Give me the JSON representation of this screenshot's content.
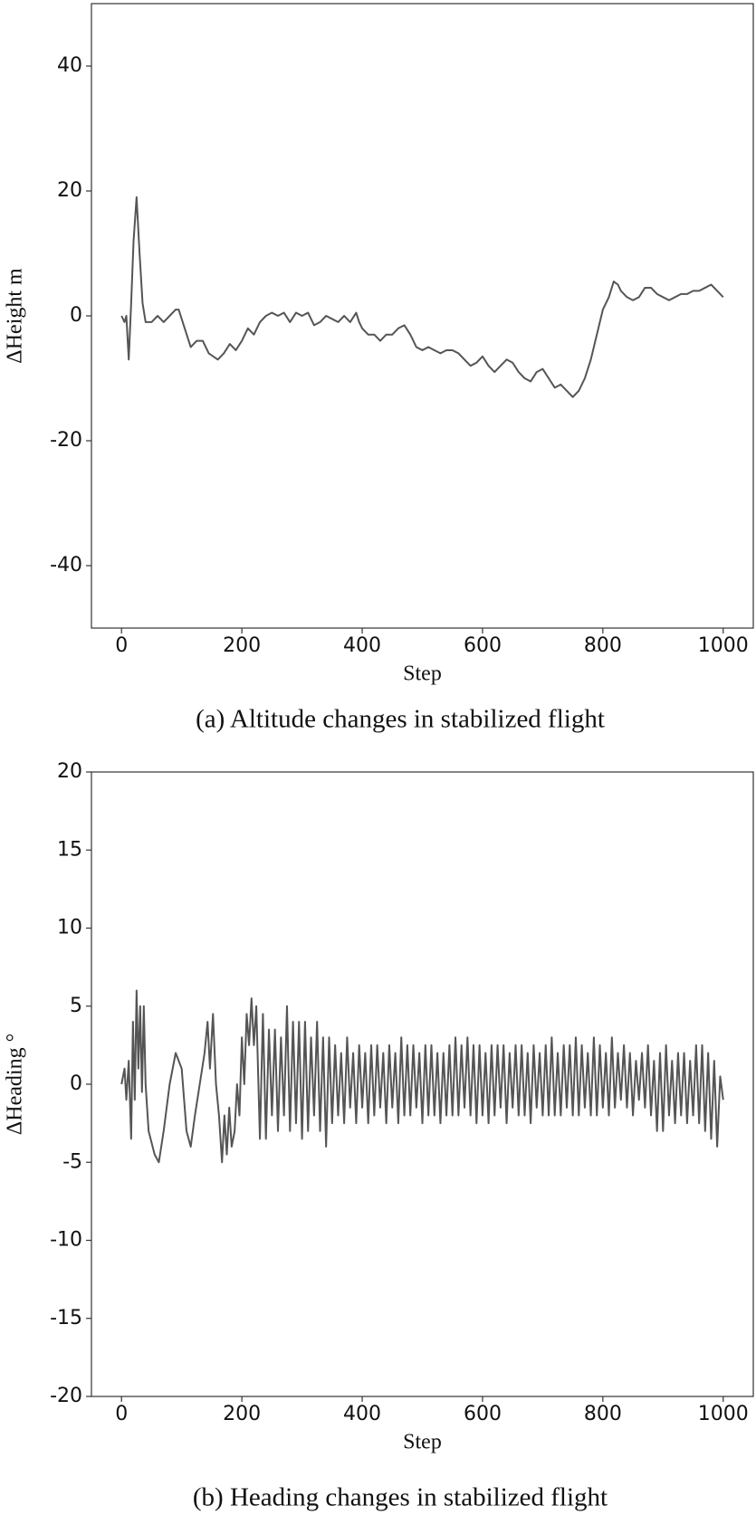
{
  "chart_data": [
    {
      "type": "line",
      "caption": "(a) Altitude changes in stabilized flight",
      "xlabel": "Step",
      "ylabel": "ΔHeight m",
      "xlim": [
        -50,
        1050
      ],
      "ylim": [
        -50,
        50
      ],
      "xticks": [
        0,
        200,
        400,
        600,
        800,
        1000
      ],
      "yticks": [
        -40,
        -20,
        0,
        20,
        40
      ],
      "x": [
        0,
        5,
        8,
        12,
        16,
        20,
        25,
        30,
        35,
        40,
        50,
        60,
        70,
        80,
        90,
        95,
        105,
        115,
        125,
        135,
        145,
        160,
        170,
        180,
        190,
        200,
        210,
        220,
        230,
        240,
        250,
        260,
        270,
        280,
        290,
        300,
        310,
        320,
        330,
        340,
        350,
        360,
        370,
        380,
        390,
        395,
        400,
        410,
        420,
        430,
        440,
        450,
        460,
        470,
        480,
        490,
        500,
        510,
        520,
        530,
        540,
        550,
        560,
        570,
        580,
        590,
        600,
        610,
        620,
        630,
        640,
        650,
        660,
        670,
        680,
        690,
        700,
        710,
        720,
        730,
        740,
        750,
        760,
        770,
        780,
        790,
        800,
        810,
        818,
        825,
        830,
        840,
        850,
        860,
        870,
        880,
        890,
        900,
        910,
        920,
        930,
        940,
        950,
        960,
        970,
        980,
        990,
        1000
      ],
      "series": [
        {
          "color": "#555555",
          "values": [
            0,
            -1,
            0,
            -7,
            2,
            12,
            19,
            10,
            2,
            -1,
            -1,
            0,
            -1,
            0,
            1,
            1,
            -2,
            -5,
            -4,
            -4,
            -6,
            -7,
            -6,
            -4.5,
            -5.5,
            -4,
            -2,
            -3,
            -1,
            0,
            0.5,
            0,
            0.5,
            -1,
            0.5,
            0,
            0.5,
            -1.5,
            -1,
            0,
            -0.5,
            -1,
            0,
            -1,
            0.5,
            -1,
            -2,
            -3,
            -3,
            -4,
            -3,
            -3,
            -2,
            -1.5,
            -3,
            -5,
            -5.5,
            -5,
            -5.5,
            -6,
            -5.5,
            -5.5,
            -6,
            -7,
            -8,
            -7.5,
            -6.5,
            -8,
            -9,
            -8,
            -7,
            -7.5,
            -9,
            -10,
            -10.5,
            -9,
            -8.5,
            -10,
            -11.5,
            -11,
            -12,
            -13,
            -12,
            -10,
            -7,
            -3,
            1,
            3,
            5.5,
            5,
            4,
            3,
            2.5,
            3,
            4.5,
            4.5,
            3.5,
            3,
            2.5,
            3,
            3.5,
            3.5,
            4,
            4,
            4.5,
            5,
            4,
            3
          ]
        }
      ]
    },
    {
      "type": "line",
      "caption": "(b) Heading changes in stabilized flight",
      "xlabel": "Step",
      "ylabel": "ΔHeading °",
      "xlim": [
        -50,
        1050
      ],
      "ylim": [
        -20,
        20
      ],
      "xticks": [
        0,
        200,
        400,
        600,
        800,
        1000
      ],
      "yticks": [
        -20,
        -15,
        -10,
        -5,
        0,
        5,
        10,
        15,
        20
      ],
      "x": [
        0,
        5,
        8,
        12,
        16,
        19,
        22,
        25,
        28,
        31,
        34,
        37,
        40,
        45,
        55,
        62,
        70,
        80,
        90,
        100,
        108,
        115,
        122,
        130,
        138,
        143,
        147,
        152,
        157,
        162,
        167,
        171,
        175,
        179,
        183,
        188,
        192,
        196,
        200,
        204,
        208,
        212,
        216,
        220,
        224,
        230,
        235,
        240,
        245,
        250,
        255,
        260,
        265,
        270,
        275,
        280,
        285,
        290,
        295,
        300,
        305,
        310,
        315,
        320,
        325,
        330,
        335,
        340,
        345,
        350,
        355,
        360,
        365,
        370,
        375,
        380,
        385,
        390,
        395,
        400,
        405,
        410,
        415,
        420,
        425,
        430,
        435,
        440,
        445,
        450,
        455,
        460,
        465,
        470,
        475,
        480,
        485,
        490,
        495,
        500,
        505,
        510,
        515,
        520,
        525,
        530,
        535,
        540,
        545,
        550,
        555,
        560,
        565,
        570,
        575,
        580,
        585,
        590,
        595,
        600,
        605,
        610,
        615,
        620,
        625,
        630,
        635,
        640,
        645,
        650,
        655,
        660,
        665,
        670,
        675,
        680,
        685,
        690,
        695,
        700,
        705,
        710,
        715,
        720,
        725,
        730,
        735,
        740,
        745,
        750,
        755,
        760,
        765,
        770,
        775,
        780,
        785,
        790,
        795,
        800,
        805,
        810,
        815,
        820,
        825,
        830,
        835,
        840,
        845,
        850,
        855,
        860,
        865,
        870,
        875,
        880,
        885,
        890,
        895,
        900,
        905,
        910,
        915,
        920,
        925,
        930,
        935,
        940,
        945,
        950,
        955,
        960,
        965,
        970,
        975,
        980,
        985,
        990,
        995,
        1000
      ],
      "series": [
        {
          "color": "#555555",
          "values": [
            0,
            1,
            -1,
            1.5,
            -3.5,
            4,
            -1,
            6,
            1,
            5,
            -0.5,
            5,
            0,
            -3,
            -4.5,
            -5,
            -3,
            0,
            2,
            1,
            -3,
            -4,
            -2,
            0,
            2,
            4,
            1,
            4.5,
            0,
            -2,
            -5,
            -2,
            -4.5,
            -1.5,
            -4,
            -3,
            0,
            -2,
            3,
            0,
            4.5,
            2.5,
            5.5,
            2.5,
            5,
            -3.5,
            4.5,
            -3.5,
            3.5,
            -2,
            3.5,
            -3,
            3,
            -2,
            5,
            -3,
            4,
            -2.5,
            4,
            -3.5,
            4,
            -3,
            3,
            -2,
            4,
            -3,
            3,
            -4,
            3,
            -2.5,
            2.5,
            -2,
            2,
            -2.5,
            3,
            -1.5,
            2,
            -2.5,
            2.5,
            -1.5,
            2,
            -2.5,
            2.5,
            -2,
            2.5,
            -1.5,
            2,
            -2.5,
            2.5,
            -1.5,
            2,
            -2.5,
            3,
            -2,
            2.5,
            -2,
            2.5,
            -1.5,
            2,
            -2.5,
            2.5,
            -2,
            2.5,
            -2,
            2,
            -2.5,
            2,
            -2,
            2.5,
            -2,
            3,
            -2,
            2.5,
            -1.5,
            3,
            -2,
            2.5,
            -2.5,
            2.5,
            -2,
            2,
            -2.5,
            2.5,
            -2,
            2.5,
            -1.5,
            2.5,
            -2.5,
            2,
            -1.5,
            2.5,
            -2,
            2.5,
            -2,
            2,
            -2.5,
            2.5,
            -1.5,
            2,
            -2,
            2.5,
            -2,
            3,
            -2,
            2,
            -2,
            2.5,
            -1.5,
            2.5,
            -2,
            3,
            -2,
            2.5,
            -1.5,
            2,
            -2,
            3,
            -2,
            2.5,
            -1.5,
            2,
            -2,
            3,
            -1.5,
            2,
            -1,
            2.5,
            -1.5,
            2,
            -2,
            1.5,
            -1,
            2,
            -1.5,
            2.5,
            -2,
            1.5,
            -3,
            2,
            -3,
            2.5,
            -2,
            1.5,
            -2.5,
            2,
            -2,
            2,
            -2.5,
            1.5,
            -2,
            2.5,
            -2.5,
            2.5,
            -3,
            2,
            -3.5,
            1.5,
            -4,
            0.5,
            -1
          ]
        }
      ]
    }
  ]
}
